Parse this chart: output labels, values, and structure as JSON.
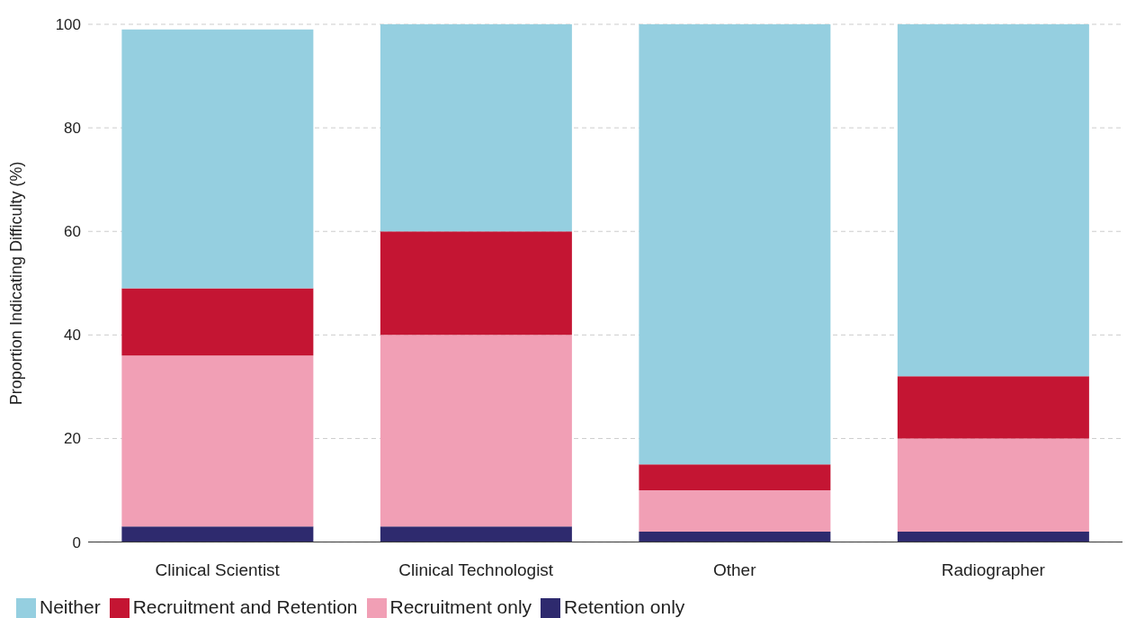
{
  "chart_data": {
    "type": "bar",
    "stacked": true,
    "ylabel": "Proportion Indicating Difficulty (%)",
    "categories": [
      "Clinical Scientist",
      "Clinical Technologist",
      "Other",
      "Radiographer"
    ],
    "series": [
      {
        "name": "Retention only",
        "color": "#2e2a6e",
        "values": [
          3,
          3,
          2,
          2
        ]
      },
      {
        "name": "Recruitment only",
        "color": "#f19fb5",
        "values": [
          33,
          37,
          8,
          18
        ]
      },
      {
        "name": "Recruitment and Retention",
        "color": "#c41533",
        "values": [
          13,
          20,
          5,
          12
        ]
      },
      {
        "name": "Neither",
        "color": "#95cfe0",
        "values": [
          50,
          40,
          85,
          68
        ]
      }
    ],
    "ylim": [
      0,
      100
    ],
    "yticks": [
      0,
      20,
      40,
      60,
      80,
      100
    ],
    "grid": "y",
    "legend": "bottom left"
  }
}
